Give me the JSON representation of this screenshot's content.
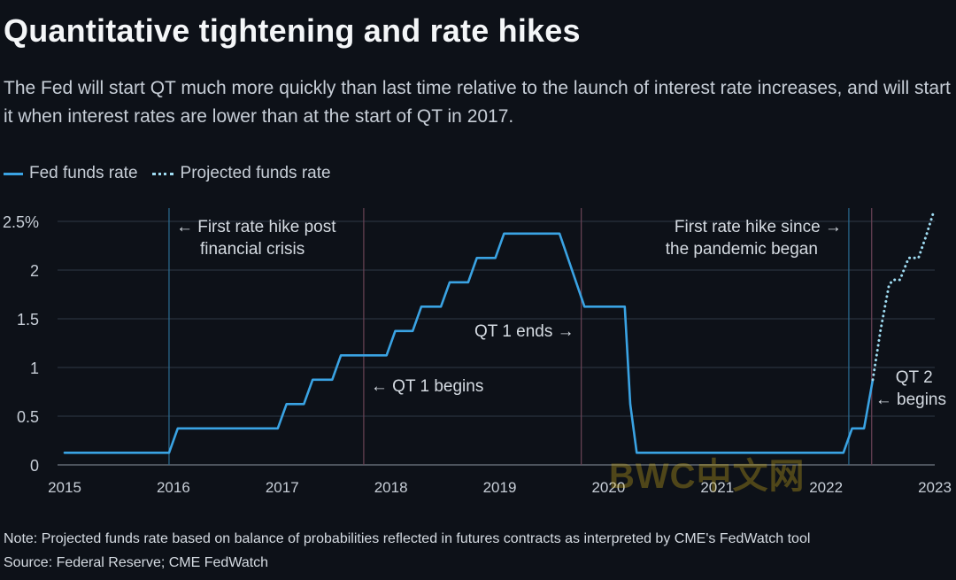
{
  "title": "Quantitative tightening and rate hikes",
  "subtitle": "The Fed will start QT much more quickly than last time relative to the launch of interest rate increases, and will start it when interest rates are lower than at the start of QT in 2017.",
  "footer": {
    "note": "Note: Projected funds rate based on balance of probabilities reflected in futures contracts as interpreted by CME's FedWatch tool",
    "source": "Source: Federal Reserve; CME FedWatch"
  },
  "watermark": "BWC中文网",
  "colors": {
    "background": "#0d1118",
    "fed_line": "#3aa3e3",
    "projected_line": "#9fdcf2",
    "grid": "#2f3946",
    "rate_hike_marker": "#2b6c93",
    "qt_marker": "#6b4356"
  },
  "chart_data": {
    "type": "line",
    "title": "Quantitative tightening and rate hikes",
    "xlim": [
      2015,
      2023
    ],
    "ylim": [
      0,
      2.5
    ],
    "x_ticks": [
      2015,
      2016,
      2017,
      2018,
      2019,
      2020,
      2021,
      2022,
      2023
    ],
    "x_tick_labels": [
      "2015",
      "2016",
      "2017",
      "2018",
      "2019",
      "2020",
      "2021",
      "2022",
      "2023"
    ],
    "y_ticks": [
      0,
      0.5,
      1,
      1.5,
      2,
      2.5
    ],
    "y_tick_labels": [
      "0",
      "0.5",
      "1",
      "1.5",
      "2",
      "2.5%"
    ],
    "grid": "horizontal",
    "legend_position": "top-left",
    "series": [
      {
        "name": "Fed funds rate",
        "style": "solid",
        "x": [
          2015.0,
          2015.96,
          2016.04,
          2016.96,
          2017.04,
          2017.2,
          2017.28,
          2017.46,
          2017.54,
          2017.96,
          2018.04,
          2018.2,
          2018.28,
          2018.46,
          2018.54,
          2018.71,
          2018.79,
          2018.96,
          2019.04,
          2019.55,
          2019.78,
          2019.8,
          2020.15,
          2020.2,
          2020.26,
          2022.16,
          2022.24,
          2022.35,
          2022.43
        ],
        "y": [
          0.125,
          0.125,
          0.375,
          0.375,
          0.625,
          0.625,
          0.875,
          0.875,
          1.125,
          1.125,
          1.375,
          1.375,
          1.625,
          1.625,
          1.875,
          1.875,
          2.125,
          2.125,
          2.375,
          2.375,
          1.625,
          1.625,
          1.625,
          0.625,
          0.125,
          0.125,
          0.375,
          0.375,
          0.875
        ]
      },
      {
        "name": "Projected funds rate",
        "style": "dotted",
        "x": [
          2022.43,
          2022.5,
          2022.58,
          2022.62,
          2022.68,
          2022.76,
          2022.85,
          2022.92,
          2022.99
        ],
        "y": [
          0.875,
          1.375,
          1.85,
          1.9,
          1.9,
          2.125,
          2.125,
          2.35,
          2.6
        ]
      }
    ],
    "markers": [
      {
        "id": "rate-hike-2015",
        "x": 2015.96,
        "kind": "rate-hike",
        "text": [
          "First rate hike post",
          "financial crisis"
        ],
        "arrow": "←",
        "side": "right"
      },
      {
        "id": "qt1-begins",
        "x": 2017.75,
        "kind": "qt",
        "text": [
          "QT 1 begins"
        ],
        "arrow": "←",
        "side": "right"
      },
      {
        "id": "qt1-ends",
        "x": 2019.75,
        "kind": "qt",
        "text": [
          "QT 1 ends"
        ],
        "arrow": "→",
        "side": "left"
      },
      {
        "id": "rate-hike-2022",
        "x": 2022.21,
        "kind": "rate-hike",
        "text": [
          "First rate hike since",
          "the pandemic  began"
        ],
        "arrow": "→",
        "side": "left"
      },
      {
        "id": "qt2-begins",
        "x": 2022.42,
        "kind": "qt",
        "text": [
          "QT 2",
          "begins"
        ],
        "arrow": "←",
        "side": "right"
      }
    ]
  }
}
